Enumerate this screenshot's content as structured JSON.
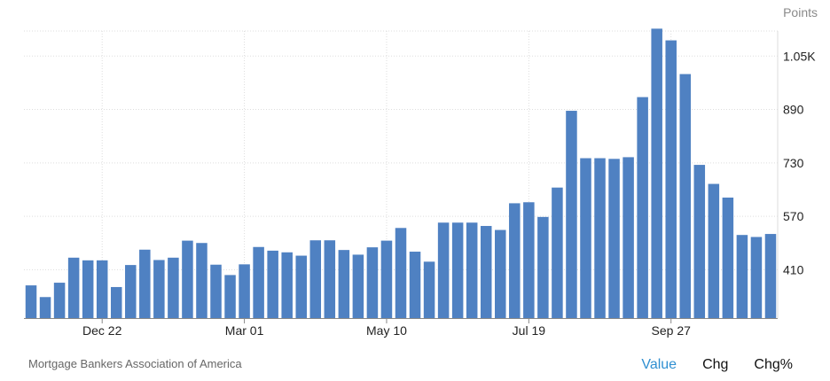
{
  "unit_label": "Points",
  "source": "Mortgage Bankers Association of America",
  "tabs": [
    {
      "label": "Value",
      "active": true
    },
    {
      "label": "Chg",
      "active": false
    },
    {
      "label": "Chg%",
      "active": false
    }
  ],
  "colors": {
    "bar": "#4f81c2",
    "grid": "#dddddd",
    "active_tab": "#2f8fd1"
  },
  "chart_data": {
    "type": "bar",
    "title": "",
    "xlabel": "",
    "ylabel": "Points",
    "ylim": [
      265,
      1125
    ],
    "yticks": [
      410,
      570,
      730,
      890,
      1050
    ],
    "ytick_labels": [
      "410",
      "570",
      "730",
      "890",
      "1.05K"
    ],
    "xtick_labels": [
      {
        "index": 5,
        "label": "Dec 22"
      },
      {
        "index": 15,
        "label": "Mar 01"
      },
      {
        "index": 25,
        "label": "May 10"
      },
      {
        "index": 35,
        "label": "Jul 19"
      },
      {
        "index": 45,
        "label": "Sep 27"
      }
    ],
    "grid": true,
    "values": [
      363,
      328,
      371,
      446,
      438,
      438,
      358,
      424,
      470,
      439,
      446,
      497,
      490,
      425,
      394,
      426,
      478,
      467,
      462,
      452,
      498,
      498,
      469,
      455,
      477,
      497,
      535,
      464,
      434,
      551,
      551,
      551,
      541,
      529,
      609,
      612,
      568,
      656,
      886,
      744,
      744,
      742,
      747,
      927,
      1132,
      1097,
      996,
      724,
      667,
      626,
      514,
      508,
      517
    ]
  }
}
